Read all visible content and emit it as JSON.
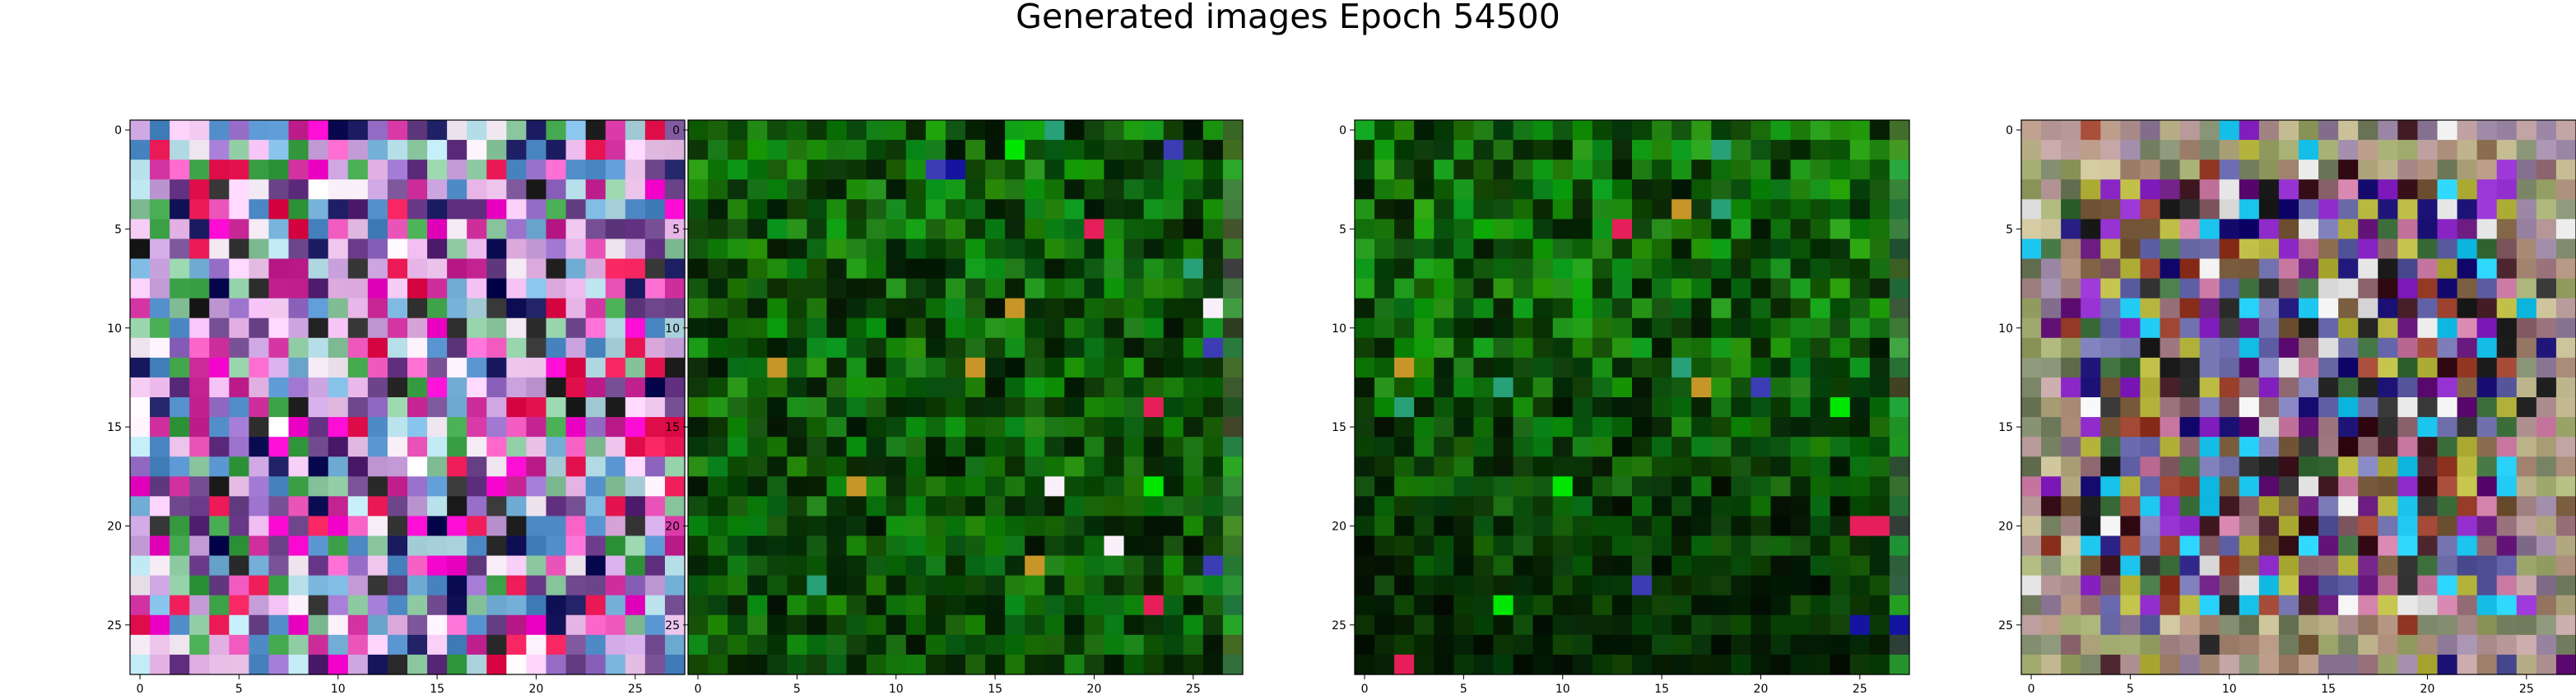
{
  "figure": {
    "title": "Generated images Epoch 54500"
  },
  "chart_data": [
    {
      "type": "heatmap",
      "palette": "varied-pastel-magenta",
      "grid_size": 28,
      "x_ticks": [
        "0",
        "5",
        "10",
        "15",
        "20",
        "25"
      ],
      "y_ticks": [
        "0",
        "5",
        "10",
        "15",
        "20",
        "25"
      ],
      "xlim": [
        -0.5,
        27.5
      ],
      "ylim": [
        27.5,
        -0.5
      ]
    },
    {
      "type": "heatmap",
      "palette": "dark-green",
      "grid_size": 28,
      "x_ticks": [
        "0",
        "5",
        "10",
        "15",
        "20",
        "25"
      ],
      "y_ticks": [
        "0",
        "5",
        "10",
        "15",
        "20",
        "25"
      ],
      "xlim": [
        -0.5,
        27.5
      ],
      "ylim": [
        27.5,
        -0.5
      ]
    },
    {
      "type": "heatmap",
      "palette": "dark-green-sparse",
      "grid_size": 28,
      "x_ticks": [
        "0",
        "5",
        "10",
        "15",
        "20",
        "25"
      ],
      "y_ticks": [
        "0",
        "5",
        "10",
        "15",
        "20",
        "25"
      ],
      "xlim": [
        -0.5,
        27.5
      ],
      "ylim": [
        27.5,
        -0.5
      ]
    },
    {
      "type": "heatmap",
      "palette": "muted-mixed",
      "grid_size": 28,
      "x_ticks": [
        "0",
        "5",
        "10",
        "15",
        "20",
        "25"
      ],
      "y_ticks": [
        "0",
        "5",
        "10",
        "15",
        "20",
        "25"
      ],
      "xlim": [
        -0.5,
        27.5
      ],
      "ylim": [
        27.5,
        -0.5
      ]
    }
  ]
}
